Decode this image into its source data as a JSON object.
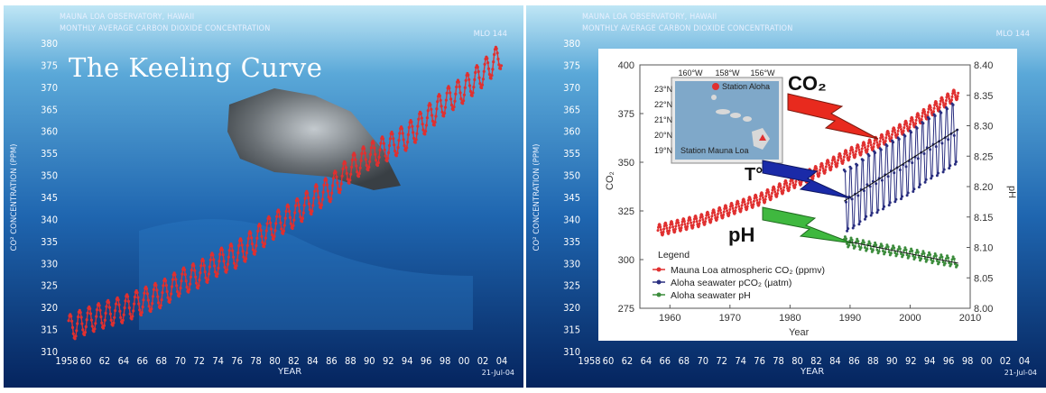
{
  "left": {
    "header_line1": "MAUNA LOA OBSERVATORY, HAWAII",
    "header_line2": "MONTHLY AVERAGE CARBON DIOXIDE CONCENTRATION",
    "station_tag": "MLO 144",
    "title": "The Keeling Curve",
    "ylabel": "CO² CONCENTRATION (PPM)",
    "xlabel": "YEAR",
    "date": "21-Jul-04"
  },
  "right": {
    "header_line1": "MAUNA LOA OBSERVATORY, HAWAII",
    "header_line2": "MONTHLY AVERAGE CARBON DIOXIDE CONCENTRATION",
    "station_tag": "MLO 144",
    "ylabel": "CO² CONCENTRATION (PPM)",
    "xlabel": "YEAR",
    "date": "21-Jul-04",
    "inset": {
      "ylabel_left": "CO₂",
      "ylabel_right": "pH",
      "xlabel": "Year",
      "legend_title": "Legend",
      "legend_mauna": "Mauna Loa atmospheric CO₂ (ppmv)",
      "legend_aloha_pco2": "Aloha seawater pCO₂ (μatm)",
      "legend_aloha_ph": "Aloha seawater pH",
      "arrow_co2": "CO₂",
      "arrow_temp": "T°",
      "arrow_ph": "pH",
      "map_lon": [
        "160°W",
        "158°W",
        "156°W"
      ],
      "map_lat": [
        "23°N",
        "22°N",
        "21°N",
        "20°N",
        "19°N"
      ],
      "map_station_aloha": "Station Aloha",
      "map_station_mauna": "Station Mauna Loa"
    }
  },
  "colors": {
    "mauna": "#e03030",
    "pco2": "#2a2f80",
    "ph": "#3c8c3c",
    "bg_top": "#9fd8ee",
    "bg_bottom": "#062a6a"
  },
  "chart_data": [
    {
      "type": "line",
      "title": "The Keeling Curve",
      "xlabel": "YEAR",
      "ylabel": "CO² CONCENTRATION (PPM)",
      "xlim": [
        1958,
        2004
      ],
      "ylim": [
        310,
        380
      ],
      "x_tick_labels": [
        "1958",
        "60",
        "62",
        "64",
        "66",
        "68",
        "70",
        "72",
        "74",
        "76",
        "78",
        "80",
        "82",
        "84",
        "86",
        "88",
        "90",
        "92",
        "94",
        "96",
        "98",
        "00",
        "02",
        "04"
      ],
      "y_ticks": [
        310,
        315,
        320,
        325,
        330,
        335,
        340,
        345,
        350,
        355,
        360,
        365,
        370,
        375,
        380
      ],
      "series": [
        {
          "x": [
            1958.2,
            1960,
            1962,
            1964,
            1966,
            1968,
            1970,
            1972,
            1974,
            1976,
            1978,
            1980,
            1982,
            1984,
            1986,
            1988,
            1990,
            1992,
            1994,
            1996,
            1998,
            2000,
            2002,
            2004
          ],
          "values": [
            315.3,
            316.9,
            318.4,
            319.6,
            321.4,
            323.0,
            325.7,
            327.5,
            330.2,
            332.0,
            335.3,
            338.7,
            341.1,
            344.4,
            347.2,
            351.5,
            354.4,
            356.4,
            358.8,
            362.6,
            366.7,
            369.5,
            373.1,
            377.5
          ]
        }
      ],
      "seasonal_amplitude_ppm": 6
    },
    {
      "type": "line",
      "xlabel": "Year",
      "ylabel": "CO₂",
      "y2label": "pH",
      "xlim": [
        1955,
        2010
      ],
      "ylim": [
        275,
        400
      ],
      "y2lim": [
        8.0,
        8.4
      ],
      "x_ticks": [
        1960,
        1970,
        1980,
        1990,
        2000,
        2010
      ],
      "y_ticks": [
        275,
        300,
        325,
        350,
        375,
        400
      ],
      "y2_ticks": [
        8.0,
        8.05,
        8.1,
        8.15,
        8.2,
        8.25,
        8.3,
        8.35,
        8.4
      ],
      "series": [
        {
          "name": "Mauna Loa atmospheric CO₂ (ppmv)",
          "axis": "left",
          "x": [
            1958,
            1965,
            1970,
            1975,
            1980,
            1985,
            1990,
            1995,
            2000,
            2005,
            2008
          ],
          "values": [
            315,
            320,
            325.7,
            331,
            338.7,
            346,
            354.4,
            360.8,
            369.5,
            379.8,
            385.5
          ]
        },
        {
          "name": "Aloha seawater pCO₂ (μatm)",
          "axis": "left",
          "x": [
            1989,
            1991,
            1993,
            1995,
            1997,
            1999,
            2001,
            2003,
            2005,
            2007,
            2008
          ],
          "values": [
            330,
            333,
            338,
            341,
            345,
            348,
            352,
            357,
            360,
            364,
            366
          ],
          "trend": {
            "x": [
              1989,
              2008
            ],
            "values": [
              330,
              367
            ]
          }
        },
        {
          "name": "Aloha seawater pH",
          "axis": "right",
          "x": [
            1989,
            1991,
            1993,
            1995,
            1997,
            1999,
            2001,
            2003,
            2005,
            2007,
            2008
          ],
          "values": [
            8.11,
            8.106,
            8.102,
            8.098,
            8.095,
            8.092,
            8.088,
            8.084,
            8.08,
            8.077,
            8.075
          ],
          "trend": {
            "x": [
              1989,
              2008
            ],
            "values": [
              8.111,
              8.074
            ]
          }
        }
      ]
    }
  ]
}
